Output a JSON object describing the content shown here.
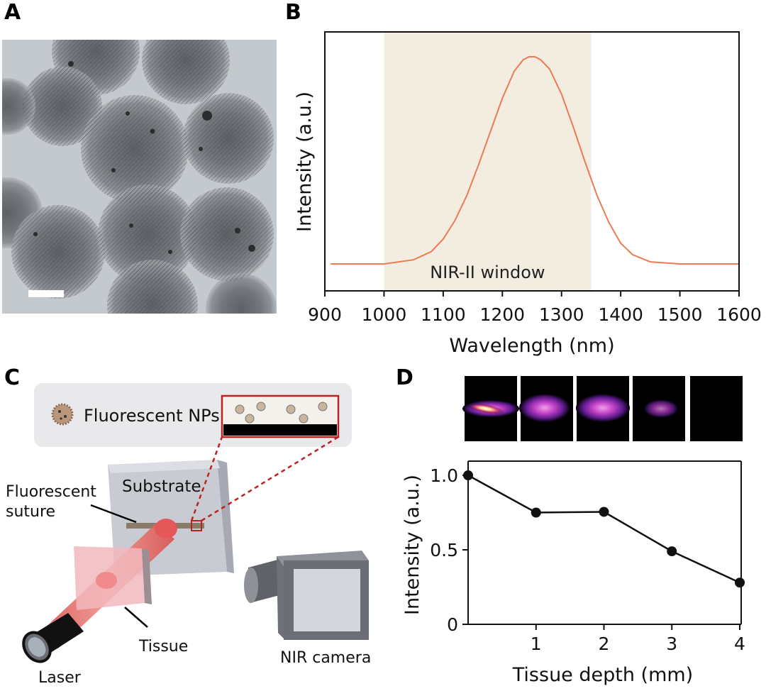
{
  "panels": {
    "a": "A",
    "b": "B",
    "c": "C",
    "d": "D"
  },
  "panel_c": {
    "legend_label": "Fluorescent  NPs",
    "substrate_label": "Substrate",
    "suture_label_line1": "Fluorescent",
    "suture_label_line2": "suture",
    "tissue_label": "Tissue",
    "laser_label": "Laser",
    "camera_label": "NIR camera"
  },
  "chart_data": [
    {
      "type": "line",
      "panel": "B",
      "title": "",
      "xlabel": "Wavelength (nm)",
      "ylabel": "Intensity (a.u.)",
      "xlim": [
        900,
        1600
      ],
      "x_ticks": [
        "900",
        "1000",
        "1100",
        "1200",
        "1300",
        "1400",
        "1500",
        "1600"
      ],
      "y_ticks": false,
      "shaded_region": {
        "x": [
          1000,
          1350
        ],
        "label": "NIR-II window",
        "color": "#f3ece0"
      },
      "series": [
        {
          "color": "#ee7a55",
          "x": [
            910,
            1000,
            1050,
            1080,
            1100,
            1120,
            1140,
            1160,
            1180,
            1200,
            1220,
            1235,
            1245,
            1255,
            1265,
            1280,
            1300,
            1320,
            1340,
            1360,
            1380,
            1400,
            1420,
            1450,
            1500,
            1600
          ],
          "y": [
            0.0,
            0.0,
            0.02,
            0.06,
            0.12,
            0.21,
            0.33,
            0.48,
            0.64,
            0.8,
            0.93,
            0.985,
            1.0,
            1.0,
            0.985,
            0.94,
            0.82,
            0.66,
            0.49,
            0.33,
            0.2,
            0.1,
            0.045,
            0.01,
            0.0,
            0.0
          ]
        }
      ]
    },
    {
      "type": "line",
      "panel": "D",
      "title": "",
      "xlabel": "Tissue depth (mm)",
      "ylabel": "Intensity (a.u.)",
      "xlim": [
        0,
        4
      ],
      "ylim": [
        0,
        1.0
      ],
      "x_ticks": [
        "1",
        "2",
        "3",
        "4"
      ],
      "y_ticks": [
        "0",
        "0.5",
        "1.0"
      ],
      "grid": false,
      "series": [
        {
          "color": "#111111",
          "x": [
            0,
            1,
            2,
            3,
            4
          ],
          "y": [
            1.0,
            0.75,
            0.755,
            0.49,
            0.28
          ]
        }
      ]
    }
  ]
}
